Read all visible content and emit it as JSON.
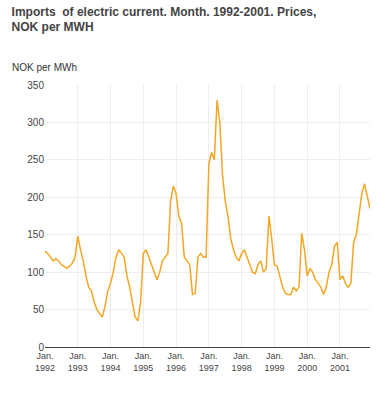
{
  "chart_data": {
    "type": "line",
    "title": "Imports  of electric current. Month. 1992-2001. Prices,\nNOK per MWH",
    "y_label": "NOK per MWh",
    "categories": [
      "Jan.\n1992",
      null,
      null,
      null,
      null,
      null,
      null,
      null,
      null,
      null,
      null,
      null,
      "Jan.\n1993",
      null,
      null,
      null,
      null,
      null,
      null,
      null,
      null,
      null,
      null,
      null,
      "Jan.\n1994",
      null,
      null,
      null,
      null,
      null,
      null,
      null,
      null,
      null,
      null,
      null,
      "Jan.\n1995",
      null,
      null,
      null,
      null,
      null,
      null,
      null,
      null,
      null,
      null,
      null,
      "Jan.\n1996",
      null,
      null,
      null,
      null,
      null,
      null,
      null,
      null,
      null,
      null,
      null,
      "Jan.\n1997",
      null,
      null,
      null,
      null,
      null,
      null,
      null,
      null,
      null,
      null,
      null,
      "Jan.\n1998",
      null,
      null,
      null,
      null,
      null,
      null,
      null,
      null,
      null,
      null,
      null,
      "Jan.\n1999",
      null,
      null,
      null,
      null,
      null,
      null,
      null,
      null,
      null,
      null,
      null,
      "Jan.\n2000",
      null,
      null,
      null,
      null,
      null,
      null,
      null,
      null,
      null,
      null,
      null,
      "Jan.\n2001",
      null,
      null,
      null,
      null,
      null,
      null,
      null,
      null,
      null,
      null,
      null
    ],
    "values": [
      128,
      125,
      120,
      115,
      118,
      115,
      110,
      108,
      105,
      108,
      112,
      120,
      148,
      130,
      115,
      95,
      80,
      75,
      60,
      50,
      45,
      40,
      55,
      75,
      85,
      100,
      120,
      130,
      125,
      120,
      95,
      80,
      60,
      40,
      35,
      60,
      125,
      130,
      120,
      110,
      100,
      90,
      100,
      115,
      120,
      125,
      195,
      215,
      205,
      175,
      165,
      120,
      115,
      110,
      70,
      72,
      120,
      125,
      120,
      120,
      245,
      260,
      250,
      330,
      300,
      230,
      195,
      175,
      145,
      130,
      120,
      115,
      125,
      130,
      120,
      110,
      100,
      98,
      110,
      115,
      100,
      105,
      175,
      145,
      110,
      108,
      95,
      80,
      72,
      70,
      70,
      80,
      75,
      80,
      152,
      130,
      95,
      105,
      100,
      90,
      85,
      80,
      70,
      80,
      100,
      110,
      135,
      140,
      90,
      95,
      85,
      80,
      85,
      140,
      150,
      175,
      205,
      218,
      200,
      185
    ],
    "color": "#F5A623",
    "ylim": [
      0,
      350
    ],
    "yticks": [
      0,
      50,
      100,
      150,
      200,
      250,
      300,
      350
    ],
    "grid": true
  }
}
